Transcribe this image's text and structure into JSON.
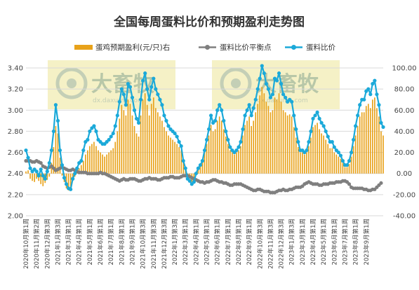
{
  "chart_data": {
    "type": "bar+line",
    "title": "全国每周蛋料比价和预期盈利走势图",
    "legend": [
      {
        "key": "profit",
        "label": "蛋鸡预期盈利(元/只)右",
        "color": "#e8a21a",
        "marker": "bar"
      },
      {
        "key": "breakeven",
        "label": "蛋料比价平衡点",
        "color": "#7f7f7f",
        "marker": "line-dot"
      },
      {
        "key": "ratio",
        "label": "蛋料比价",
        "color": "#1ba9d9",
        "marker": "line-dot"
      }
    ],
    "legend_position": "top",
    "y_left": {
      "min": 2.0,
      "max": 3.4,
      "step": 0.2,
      "ticks": [
        "2.00",
        "2.20",
        "2.40",
        "2.60",
        "2.80",
        "3.00",
        "3.20",
        "3.40"
      ]
    },
    "y_right": {
      "min": -40,
      "max": 100,
      "step": 20,
      "ticks": [
        "-40.00",
        "-20.00",
        "0.00",
        "20.00",
        "40.00",
        "60.00",
        "80.00",
        "100.00"
      ]
    },
    "x_ticks": [
      "2020年10月第1周",
      "2020年11月第2周",
      "2020年12月第3周",
      "2021年1月第3周",
      "2021年3月第1周",
      "2021年4月第1周",
      "2021年5月第1周",
      "2021年6月第1周",
      "2021年7月第1周",
      "2021年8月第1周",
      "2021年9月第1周",
      "2021年10月第3周",
      "2021年11月第3周",
      "2021年12月第3周",
      "2022年1月第3周",
      "2022年3月第1周",
      "2022年4月第1周",
      "2022年5月第1周",
      "2022年6月第1周",
      "2022年7月第1周",
      "2022年8月第1周",
      "2022年9月第1周",
      "2022年10月第3周",
      "2022年11月第3周",
      "2022年12月第3周",
      "2023年1月第3周",
      "2023年3月第1周",
      "2023年4月第1周",
      "2023年5月第1周",
      "2023年6月第1周",
      "2023年7月第1周",
      "2023年8月第1周",
      "2023年9月第1周"
    ],
    "x_tick_step": 5,
    "ratio": [
      2.62,
      2.55,
      2.45,
      2.42,
      2.44,
      2.42,
      2.38,
      2.44,
      2.38,
      2.35,
      2.42,
      2.5,
      2.62,
      2.8,
      3.05,
      2.9,
      2.62,
      2.48,
      2.36,
      2.3,
      2.26,
      2.25,
      2.35,
      2.4,
      2.45,
      2.5,
      2.52,
      2.62,
      2.7,
      2.72,
      2.8,
      2.83,
      2.85,
      2.8,
      2.72,
      2.7,
      2.68,
      2.68,
      2.7,
      2.72,
      2.75,
      2.78,
      2.85,
      2.95,
      3.08,
      3.2,
      3.15,
      3.05,
      3.25,
      3.22,
      3.12,
      3.0,
      2.92,
      2.88,
      3.1,
      3.28,
      3.35,
      3.2,
      3.1,
      3.22,
      3.3,
      3.2,
      3.15,
      3.1,
      3.05,
      2.95,
      2.9,
      2.85,
      2.82,
      2.8,
      2.78,
      2.75,
      2.7,
      2.66,
      2.52,
      2.45,
      2.35,
      2.33,
      2.3,
      2.32,
      2.4,
      2.45,
      2.48,
      2.52,
      2.62,
      2.72,
      2.82,
      2.95,
      2.88,
      2.9,
      3.0,
      3.05,
      3.0,
      2.9,
      2.8,
      2.72,
      2.65,
      2.62,
      2.6,
      2.62,
      2.65,
      2.7,
      2.82,
      2.95,
      3.0,
      3.05,
      2.95,
      3.02,
      3.1,
      3.2,
      3.3,
      3.42,
      3.35,
      3.25,
      3.2,
      3.12,
      3.15,
      3.3,
      3.28,
      3.35,
      3.25,
      3.15,
      3.12,
      3.08,
      3.1,
      3.08,
      2.95,
      2.82,
      2.7,
      2.62,
      2.62,
      2.6,
      2.62,
      2.7,
      2.8,
      2.92,
      2.95,
      2.98,
      2.92,
      2.88,
      2.85,
      2.8,
      2.75,
      2.7,
      2.7,
      2.65,
      2.62,
      2.6,
      2.57,
      2.52,
      2.48,
      2.48,
      2.52,
      2.6,
      2.72,
      2.85,
      2.95,
      3.05,
      3.1,
      3.1,
      3.18,
      3.2,
      3.15,
      3.25,
      3.28,
      3.15,
      3.05,
      2.88,
      2.84
    ],
    "breakeven": [
      2.52,
      2.52,
      2.52,
      2.51,
      2.51,
      2.52,
      2.51,
      2.5,
      2.47,
      2.46,
      2.45,
      2.46,
      2.47,
      2.45,
      2.43,
      2.44,
      2.45,
      2.46,
      2.45,
      2.44,
      2.43,
      2.43,
      2.44,
      2.43,
      2.42,
      2.41,
      2.41,
      2.41,
      2.41,
      2.4,
      2.4,
      2.4,
      2.4,
      2.4,
      2.4,
      2.41,
      2.4,
      2.4,
      2.39,
      2.38,
      2.37,
      2.36,
      2.35,
      2.34,
      2.33,
      2.34,
      2.35,
      2.34,
      2.34,
      2.35,
      2.35,
      2.35,
      2.34,
      2.33,
      2.33,
      2.34,
      2.35,
      2.35,
      2.36,
      2.35,
      2.35,
      2.35,
      2.34,
      2.34,
      2.35,
      2.36,
      2.36,
      2.36,
      2.37,
      2.37,
      2.36,
      2.36,
      2.36,
      2.37,
      2.38,
      2.38,
      2.38,
      2.37,
      2.36,
      2.35,
      2.34,
      2.33,
      2.32,
      2.32,
      2.31,
      2.32,
      2.32,
      2.33,
      2.34,
      2.34,
      2.33,
      2.32,
      2.32,
      2.31,
      2.31,
      2.3,
      2.29,
      2.29,
      2.3,
      2.3,
      2.3,
      2.3,
      2.29,
      2.28,
      2.27,
      2.26,
      2.25,
      2.24,
      2.24,
      2.25,
      2.25,
      2.24,
      2.23,
      2.23,
      2.23,
      2.22,
      2.22,
      2.22,
      2.23,
      2.24,
      2.24,
      2.25,
      2.24,
      2.24,
      2.25,
      2.25,
      2.26,
      2.27,
      2.27,
      2.27,
      2.28,
      2.3,
      2.31,
      2.32,
      2.31,
      2.3,
      2.3,
      2.3,
      2.29,
      2.29,
      2.3,
      2.3,
      2.3,
      2.31,
      2.31,
      2.31,
      2.32,
      2.32,
      2.32,
      2.33,
      2.33,
      2.32,
      2.3,
      2.27,
      2.26,
      2.26,
      2.26,
      2.26,
      2.26,
      2.25,
      2.25,
      2.24,
      2.24,
      2.25,
      2.25,
      2.27,
      2.29,
      2.31
    ],
    "profit": [
      2,
      3,
      -5,
      -7,
      -8,
      -5,
      -7,
      -10,
      -12,
      -9,
      -6,
      -3,
      10,
      25,
      45,
      38,
      15,
      -2,
      -8,
      -14,
      -16,
      -14,
      -7,
      -3,
      1,
      5,
      8,
      12,
      18,
      22,
      26,
      28,
      30,
      26,
      22,
      20,
      18,
      16,
      18,
      20,
      22,
      24,
      30,
      40,
      52,
      65,
      60,
      55,
      70,
      66,
      55,
      45,
      38,
      35,
      55,
      70,
      76,
      65,
      55,
      66,
      72,
      62,
      58,
      54,
      50,
      44,
      40,
      36,
      34,
      32,
      30,
      28,
      25,
      22,
      12,
      6,
      -3,
      -5,
      -8,
      -6,
      0,
      4,
      8,
      12,
      20,
      28,
      36,
      46,
      40,
      42,
      50,
      54,
      50,
      42,
      35,
      28,
      22,
      20,
      18,
      20,
      22,
      26,
      36,
      46,
      50,
      54,
      45,
      50,
      58,
      66,
      74,
      82,
      76,
      68,
      64,
      58,
      60,
      72,
      70,
      76,
      68,
      60,
      58,
      55,
      56,
      54,
      44,
      34,
      25,
      20,
      20,
      18,
      20,
      26,
      34,
      44,
      46,
      48,
      42,
      38,
      36,
      32,
      28,
      24,
      24,
      20,
      18,
      16,
      14,
      10,
      6,
      6,
      9,
      16,
      26,
      36,
      45,
      54,
      58,
      58,
      64,
      66,
      62,
      70,
      72,
      62,
      54,
      40,
      36
    ]
  },
  "watermark": {
    "text": "大畜牧",
    "subtext": "dx.daxumu.com"
  }
}
